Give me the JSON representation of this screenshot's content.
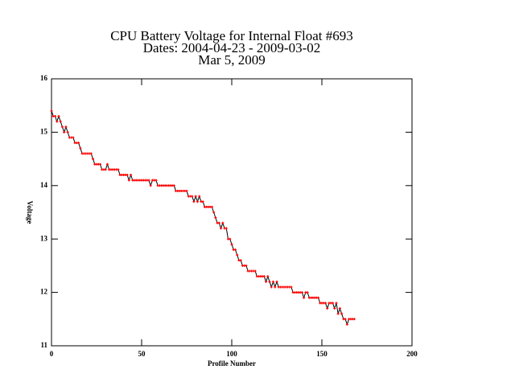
{
  "chart_data": {
    "type": "line",
    "title": [
      "CPU Battery Voltage for Internal Float #693",
      "Dates:  2004-04-23 -  2009-03-02",
      "Mar  5, 2009"
    ],
    "xlabel": "Profile Number",
    "ylabel": "Voltage",
    "xlim": [
      0,
      200
    ],
    "xticks": [
      0,
      50,
      100,
      150,
      200
    ],
    "ylim": [
      11,
      16
    ],
    "yticks": [
      11,
      12,
      13,
      14,
      15,
      16
    ],
    "series": [
      {
        "line_color": "#000000",
        "marker_color": "#ff0000",
        "x": [
          0,
          1,
          2,
          3,
          4,
          5,
          6,
          7,
          8,
          9,
          10,
          11,
          12,
          13,
          14,
          15,
          16,
          17,
          18,
          19,
          20,
          21,
          22,
          23,
          24,
          25,
          26,
          27,
          28,
          29,
          30,
          31,
          32,
          33,
          34,
          35,
          36,
          37,
          38,
          39,
          40,
          41,
          42,
          43,
          44,
          45,
          46,
          47,
          48,
          49,
          50,
          51,
          52,
          53,
          54,
          55,
          56,
          57,
          58,
          59,
          60,
          61,
          62,
          63,
          64,
          65,
          66,
          67,
          68,
          69,
          70,
          71,
          72,
          73,
          74,
          75,
          76,
          77,
          78,
          79,
          80,
          81,
          82,
          83,
          84,
          85,
          86,
          87,
          88,
          89,
          90,
          91,
          92,
          93,
          94,
          95,
          96,
          97,
          98,
          99,
          100,
          101,
          102,
          103,
          104,
          105,
          106,
          107,
          108,
          109,
          110,
          111,
          112,
          113,
          114,
          115,
          116,
          117,
          118,
          119,
          120,
          121,
          122,
          123,
          124,
          125,
          126,
          127,
          128,
          129,
          130,
          131,
          132,
          133,
          134,
          135,
          136,
          137,
          138,
          139,
          140,
          141,
          142,
          143,
          144,
          145,
          146,
          147,
          148,
          149,
          150,
          151,
          152,
          153,
          154,
          155,
          156,
          157,
          158,
          159,
          160,
          161,
          162,
          163,
          164,
          165,
          166,
          167,
          168
        ],
        "values": [
          15.4,
          15.3,
          15.3,
          15.2,
          15.3,
          15.2,
          15.1,
          15.0,
          15.1,
          15.0,
          14.9,
          14.9,
          14.9,
          14.8,
          14.8,
          14.8,
          14.7,
          14.6,
          14.6,
          14.6,
          14.6,
          14.6,
          14.6,
          14.5,
          14.4,
          14.4,
          14.4,
          14.4,
          14.3,
          14.3,
          14.3,
          14.4,
          14.3,
          14.3,
          14.3,
          14.3,
          14.3,
          14.3,
          14.2,
          14.2,
          14.2,
          14.2,
          14.2,
          14.1,
          14.2,
          14.1,
          14.1,
          14.1,
          14.1,
          14.1,
          14.1,
          14.1,
          14.1,
          14.1,
          14.1,
          14.0,
          14.1,
          14.1,
          14.1,
          14.0,
          14.0,
          14.0,
          14.0,
          14.0,
          14.0,
          14.0,
          14.0,
          14.0,
          14.0,
          13.9,
          13.9,
          13.9,
          13.9,
          13.9,
          13.9,
          13.9,
          13.8,
          13.8,
          13.8,
          13.7,
          13.8,
          13.7,
          13.8,
          13.7,
          13.7,
          13.6,
          13.6,
          13.6,
          13.6,
          13.6,
          13.5,
          13.4,
          13.3,
          13.3,
          13.2,
          13.3,
          13.2,
          13.2,
          13.0,
          13.0,
          12.9,
          12.8,
          12.8,
          12.7,
          12.6,
          12.6,
          12.5,
          12.5,
          12.5,
          12.4,
          12.4,
          12.4,
          12.4,
          12.4,
          12.3,
          12.3,
          12.3,
          12.3,
          12.3,
          12.2,
          12.3,
          12.2,
          12.1,
          12.2,
          12.1,
          12.2,
          12.1,
          12.1,
          12.1,
          12.1,
          12.1,
          12.1,
          12.1,
          12.1,
          12.0,
          12.0,
          12.0,
          12.0,
          12.0,
          12.0,
          11.9,
          12.0,
          12.0,
          11.9,
          11.9,
          11.9,
          11.9,
          11.9,
          11.9,
          11.8,
          11.8,
          11.8,
          11.8,
          11.7,
          11.8,
          11.8,
          11.8,
          11.7,
          11.8,
          11.6,
          11.7,
          11.6,
          11.5,
          11.5,
          11.4,
          11.5,
          11.5,
          11.5,
          11.5
        ]
      }
    ]
  }
}
